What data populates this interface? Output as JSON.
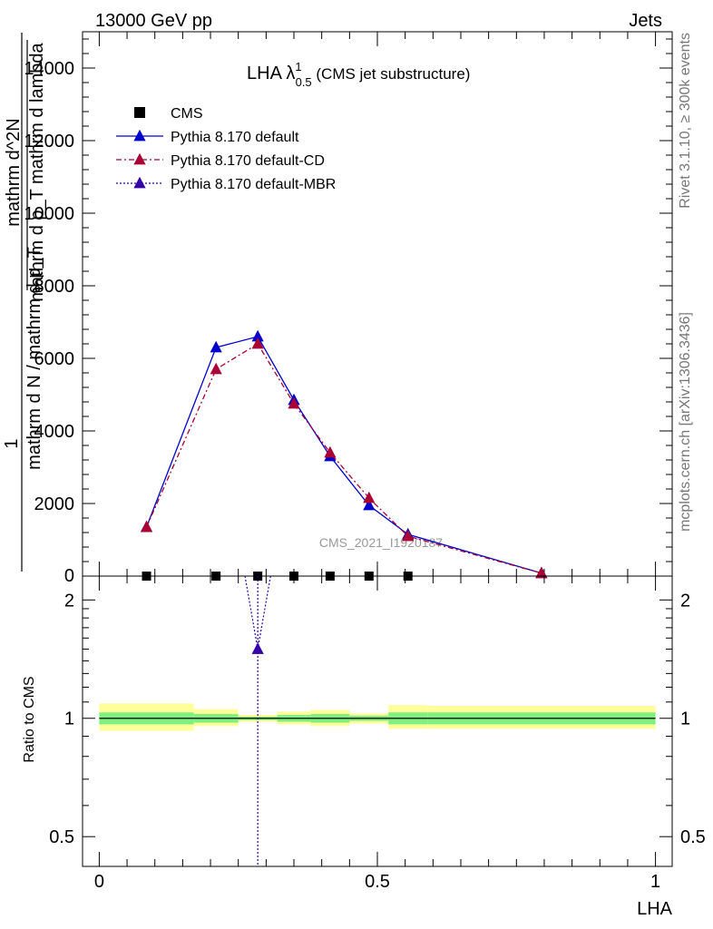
{
  "header": {
    "left": "13000 GeV pp",
    "right": "Jets"
  },
  "side_labels": {
    "rivet": "Rivet 3.1.10, ≥ 300k events",
    "mcplots": "mcplots.cern.ch [arXiv:1306.3436]"
  },
  "watermark": "CMS_2021_I1920187",
  "main_title": {
    "prefix": "LHA λ",
    "sup": "1",
    "sub": "0.5",
    "suffix": " (CMS jet substructure)"
  },
  "ylabel_main": {
    "frac_num": "1",
    "frac_den": "mathrm d N / mathrm d p_T",
    "deriv_num": "mathrm d^2N",
    "deriv_den": "mathrm d p_T mathrm d lambda"
  },
  "ylabel_ratio": "Ratio to CMS",
  "xlabel": "LHA",
  "colors": {
    "cms": "#000000",
    "default": "#0000cc",
    "cd": "#aa0033",
    "mbr": "#3300aa",
    "band_inner": "#7ff07f",
    "band_outer": "#ffff99"
  },
  "chart_data": [
    {
      "type": "line",
      "panel": "main",
      "x_range": [
        -0.03,
        1.03
      ],
      "y_range": [
        0,
        15000
      ],
      "y_ticks": [
        {
          "v": 2000,
          "label": "2000"
        },
        {
          "v": 4000,
          "label": "4000"
        },
        {
          "v": 6000,
          "label": "6000"
        },
        {
          "v": 8000,
          "label": "8000"
        },
        {
          "v": 10000,
          "label": "10000"
        },
        {
          "v": 12000,
          "label": "12000"
        },
        {
          "v": 14000,
          "label": "14000"
        }
      ],
      "y_bottom_label": "0",
      "legend_position": "top-left",
      "series": [
        {
          "name": "CMS",
          "key": "cms",
          "marker": "square",
          "line": "none",
          "x": [
            0.085,
            0.21,
            0.285,
            0.35,
            0.415,
            0.485,
            0.555
          ],
          "y": [
            0,
            0,
            0,
            0,
            0,
            0,
            0
          ]
        },
        {
          "name": "Pythia 8.170 default",
          "key": "default",
          "marker": "triangle",
          "line": "solid",
          "x": [
            0.085,
            0.21,
            0.285,
            0.35,
            0.415,
            0.485,
            0.555,
            0.795
          ],
          "y": [
            1350,
            6300,
            6600,
            4850,
            3300,
            1950,
            1150,
            80
          ],
          "err": [
            60,
            120,
            130,
            100,
            80,
            60,
            50,
            10
          ]
        },
        {
          "name": "Pythia 8.170 default-CD",
          "key": "cd",
          "marker": "triangle",
          "line": "dashdot",
          "x": [
            0.085,
            0.21,
            0.285,
            0.35,
            0.415,
            0.485,
            0.555,
            0.795
          ],
          "y": [
            1350,
            5700,
            6400,
            4750,
            3400,
            2150,
            1100,
            80
          ],
          "err": [
            60,
            120,
            130,
            100,
            80,
            60,
            50,
            10
          ]
        },
        {
          "name": "Pythia 8.170 default-MBR",
          "key": "mbr",
          "marker": "triangle",
          "line": "dotted",
          "x": [],
          "y": []
        }
      ]
    },
    {
      "type": "line",
      "panel": "ratio",
      "x_range": [
        -0.03,
        1.03
      ],
      "y_range": [
        0.42,
        2.3
      ],
      "scale": "log",
      "y_ticks": [
        {
          "v": 0.5,
          "label": "0.5"
        },
        {
          "v": 1,
          "label": "1"
        },
        {
          "v": 2,
          "label": "2"
        }
      ],
      "x_ticks": [
        {
          "v": 0,
          "label": "0"
        },
        {
          "v": 0.5,
          "label": "0.5"
        },
        {
          "v": 1,
          "label": "1"
        }
      ],
      "bands": [
        {
          "x0": 0.0,
          "x1": 0.17,
          "inner": [
            0.965,
            1.035
          ],
          "outer": [
            0.93,
            1.09
          ]
        },
        {
          "x0": 0.17,
          "x1": 0.25,
          "inner": [
            0.975,
            1.025
          ],
          "outer": [
            0.955,
            1.055
          ]
        },
        {
          "x0": 0.25,
          "x1": 0.32,
          "inner": [
            0.99,
            1.01
          ],
          "outer": [
            0.98,
            1.02
          ]
        },
        {
          "x0": 0.32,
          "x1": 0.38,
          "inner": [
            0.98,
            1.02
          ],
          "outer": [
            0.965,
            1.04
          ]
        },
        {
          "x0": 0.38,
          "x1": 0.45,
          "inner": [
            0.975,
            1.025
          ],
          "outer": [
            0.955,
            1.05
          ]
        },
        {
          "x0": 0.45,
          "x1": 0.52,
          "inner": [
            0.985,
            1.015
          ],
          "outer": [
            0.97,
            1.03
          ]
        },
        {
          "x0": 0.52,
          "x1": 0.59,
          "inner": [
            0.965,
            1.035
          ],
          "outer": [
            0.94,
            1.08
          ]
        },
        {
          "x0": 0.59,
          "x1": 1.0,
          "inner": [
            0.965,
            1.035
          ],
          "outer": [
            0.94,
            1.075
          ]
        }
      ],
      "mbr_point": {
        "x": 0.285,
        "y": 1.5,
        "err_up": 3.0,
        "err_down": 0.42
      },
      "mbr_lines": [
        {
          "x0": 0.262,
          "x1": 0.285
        },
        {
          "x0": 0.308,
          "x1": 0.285
        }
      ]
    }
  ]
}
